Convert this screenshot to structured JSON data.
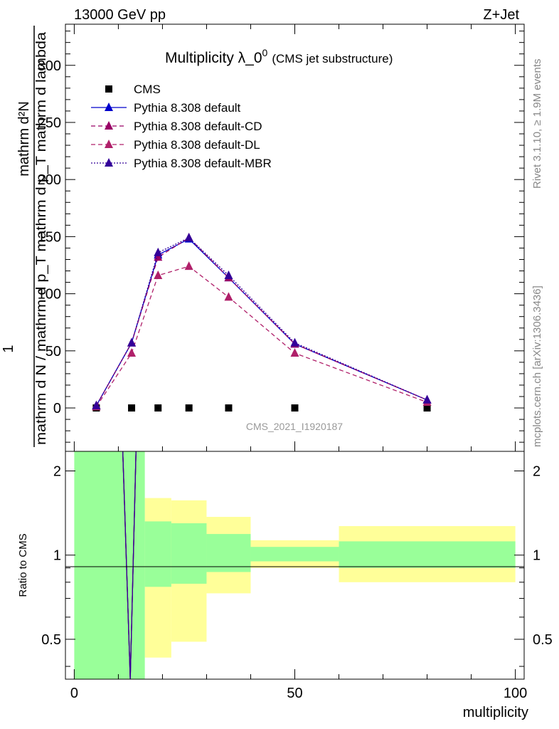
{
  "header": {
    "left": "13000 GeV pp",
    "right": "Z+Jet"
  },
  "side_labels": {
    "rivet": "Rivet 3.1.10, ≥ 1.9M events",
    "mcplots": "mcplots.cern.ch [arXiv:1306.3436]"
  },
  "main_plot": {
    "title_prefix": "Multiplicity λ_0",
    "title_sup": "0",
    "title_suffix": "(CMS jet substructure)",
    "ylabel_numerator": "mathrm d²N",
    "ylabel_denominator": "mathrm d N / mathrm d p_T mathrm d p_T mathrm d lambda",
    "ylabel_one": "1",
    "watermark": "CMS_2021_I1920187"
  },
  "ratio_plot": {
    "ylabel": "Ratio to CMS"
  },
  "xaxis": {
    "label": "multiplicity",
    "ticks": [
      "0",
      "50",
      "100"
    ]
  },
  "chart_data": [
    {
      "type": "line",
      "title": "Multiplicity λ_0^0 (CMS jet substructure)",
      "xlabel": "multiplicity",
      "ylabel": "1/(mathrm d N / mathrm d p_T) mathrm d²N/(mathrm d p_T mathrm d lambda)",
      "xlim": [
        -2,
        102
      ],
      "ylim": [
        -38,
        336
      ],
      "yticks": [
        0,
        50,
        100,
        150,
        200,
        250,
        300
      ],
      "legend_position": "top-left",
      "series": [
        {
          "name": "CMS",
          "marker": "square",
          "color": "#000000",
          "x": [
            5,
            13,
            19,
            26,
            35,
            50,
            80
          ],
          "y": [
            0,
            0,
            0,
            0,
            0,
            0,
            0
          ]
        },
        {
          "name": "Pythia 8.308 default",
          "line": "solid",
          "color": "#0000cc",
          "x": [
            5,
            13,
            19,
            26,
            35,
            50,
            80
          ],
          "y": [
            2,
            57,
            134,
            148,
            114,
            56,
            7
          ]
        },
        {
          "name": "Pythia 8.308 default-CD",
          "line": "dashed",
          "color": "#990066",
          "x": [
            5,
            13,
            19,
            26,
            35,
            50,
            80
          ],
          "y": [
            2,
            57,
            132,
            149,
            114,
            56,
            7
          ]
        },
        {
          "name": "Pythia 8.308 default-DL",
          "line": "dashed",
          "color": "#b0206a",
          "x": [
            5,
            13,
            19,
            26,
            35,
            50,
            80
          ],
          "y": [
            1,
            48,
            116,
            124,
            97,
            48,
            5
          ]
        },
        {
          "name": "Pythia 8.308 default-MBR",
          "line": "dotted",
          "color": "#330099",
          "x": [
            5,
            13,
            19,
            26,
            35,
            50,
            80
          ],
          "y": [
            2,
            57,
            136,
            149,
            116,
            57,
            7
          ]
        }
      ]
    },
    {
      "type": "area",
      "ylabel": "Ratio to CMS",
      "yscale": "log",
      "xlim": [
        -2,
        102
      ],
      "ylim": [
        0.36,
        2.35
      ],
      "yticks": [
        0.5,
        1,
        2
      ],
      "reference_line": 1,
      "bands": [
        {
          "name": "stat",
          "color": "#99ff99",
          "bins": [
            {
              "x0": 0,
              "x1": 16,
              "low": 0.36,
              "high": 2.35
            },
            {
              "x0": 16,
              "x1": 22,
              "low": 0.77,
              "high": 1.32
            },
            {
              "x0": 22,
              "x1": 30,
              "low": 0.79,
              "high": 1.3
            },
            {
              "x0": 30,
              "x1": 40,
              "low": 0.87,
              "high": 1.19
            },
            {
              "x0": 40,
              "x1": 60,
              "low": 0.95,
              "high": 1.07
            },
            {
              "x0": 60,
              "x1": 100,
              "low": 0.9,
              "high": 1.12
            }
          ]
        },
        {
          "name": "total",
          "color": "#ffff99",
          "bins": [
            {
              "x0": 16,
              "x1": 22,
              "low": 0.43,
              "high": 1.6
            },
            {
              "x0": 22,
              "x1": 30,
              "low": 0.49,
              "high": 1.57
            },
            {
              "x0": 30,
              "x1": 40,
              "low": 0.73,
              "high": 1.37
            },
            {
              "x0": 40,
              "x1": 60,
              "low": 0.9,
              "high": 1.13
            },
            {
              "x0": 60,
              "x1": 100,
              "low": 0.8,
              "high": 1.27
            }
          ]
        }
      ],
      "series": [
        {
          "name": "Pythia 8.308 default",
          "color": "#0000cc",
          "x": [
            11,
            12.7,
            14
          ],
          "y": [
            2.35,
            0.36,
            2.35
          ]
        },
        {
          "name": "Pythia 8.308 default-CD",
          "color": "#990066",
          "x": [
            11,
            12.7,
            14
          ],
          "y": [
            2.35,
            0.36,
            2.35
          ]
        },
        {
          "name": "Pythia 8.308 default-DL",
          "color": "#b0206a",
          "x": [
            11,
            12.7,
            14
          ],
          "y": [
            2.35,
            0.36,
            2.35
          ]
        },
        {
          "name": "Pythia 8.308 default-MBR",
          "color": "#330099",
          "x": [
            11,
            12.7,
            14
          ],
          "y": [
            2.35,
            0.36,
            2.35
          ]
        }
      ]
    }
  ]
}
